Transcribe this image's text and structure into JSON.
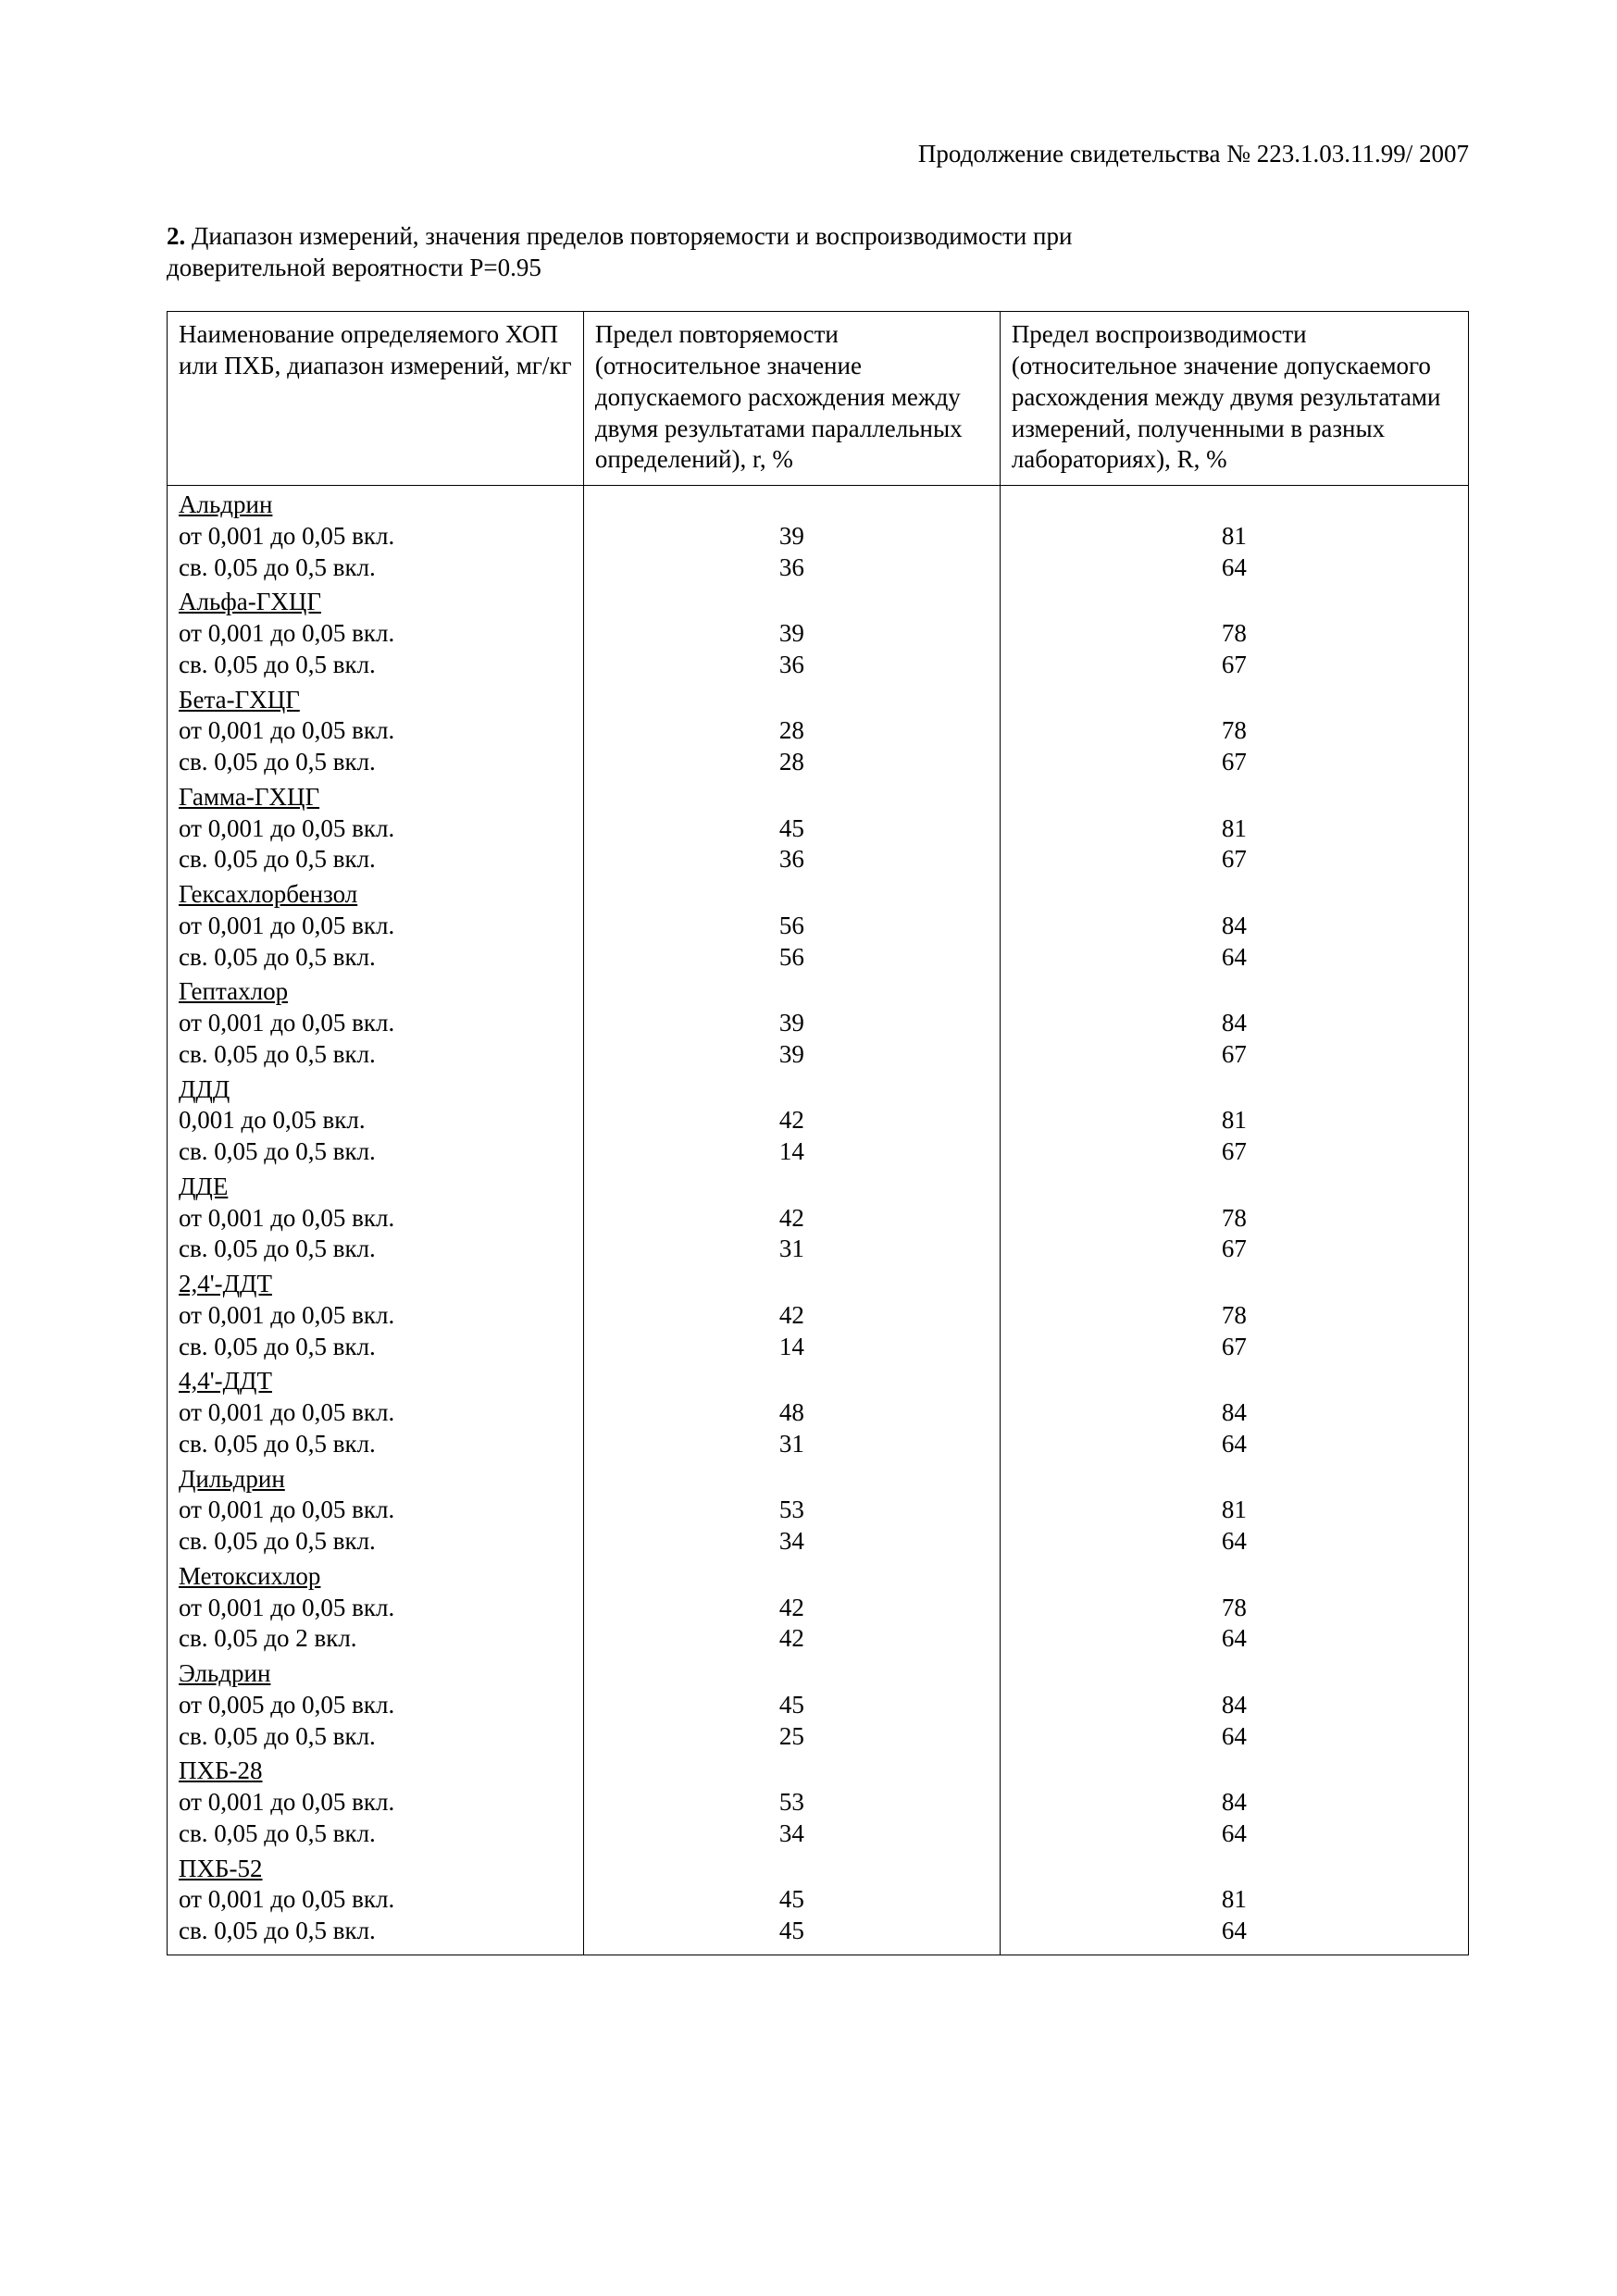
{
  "header": {
    "continuation": "Продолжение свидетельства № 223.1.03.11.99/ 2007"
  },
  "section": {
    "number": "2.",
    "title_part1": "Диапазон измерений, значения пределов повторяемости и воспроизводимости при",
    "title_part2": "доверительной вероятности P=0.95"
  },
  "table": {
    "type": "table",
    "column_widths_percent": [
      32,
      32,
      36
    ],
    "header": {
      "col1": "Наименование определяемого ХОП или ПХБ, диапазон измерений, мг/кг",
      "col2": "Предел повторяемости (относительное значение допускаемого расхождения между двумя результатами параллельных определений), r, %",
      "col3": "Предел воспроизводимости (относительное значение допускаемого расхождения между двумя результатами измерений, полученными в разных лабораториях), R, %"
    },
    "groups": [
      {
        "name": "Альдрин",
        "rows": [
          {
            "range": "от 0,001 до 0,05 вкл.",
            "r": "39",
            "R": "81"
          },
          {
            "range": "св. 0,05 до 0,5 вкл.",
            "r": "36",
            "R": "64"
          }
        ]
      },
      {
        "name": "Альфа-ГХЦГ",
        "rows": [
          {
            "range": "от 0,001 до 0,05 вкл.",
            "r": "39",
            "R": "78"
          },
          {
            "range": "св. 0,05 до 0,5 вкл.",
            "r": "36",
            "R": "67"
          }
        ]
      },
      {
        "name": "Бета-ГХЦГ",
        "rows": [
          {
            "range": "от 0,001 до 0,05 вкл.",
            "r": "28",
            "R": "78"
          },
          {
            "range": "св. 0,05 до 0,5 вкл.",
            "r": "28",
            "R": "67"
          }
        ]
      },
      {
        "name": "Гамма-ГХЦГ",
        "rows": [
          {
            "range": "от 0,001 до 0,05 вкл.",
            "r": "45",
            "R": "81"
          },
          {
            "range": "св. 0,05 до 0,5 вкл.",
            "r": "36",
            "R": "67"
          }
        ]
      },
      {
        "name": "Гексахлорбензол",
        "rows": [
          {
            "range": "от 0,001 до 0,05 вкл.",
            "r": "56",
            "R": "84"
          },
          {
            "range": "св. 0,05 до 0,5 вкл.",
            "r": "56",
            "R": "64"
          }
        ]
      },
      {
        "name": "Гептахлор",
        "rows": [
          {
            "range": "от 0,001 до 0,05 вкл.",
            "r": "39",
            "R": "84"
          },
          {
            "range": "св. 0,05 до 0,5 вкл.",
            "r": "39",
            "R": "67"
          }
        ]
      },
      {
        "name": "ДДД",
        "rows": [
          {
            "range": "0,001 до 0,05 вкл.",
            "r": "42",
            "R": "81"
          },
          {
            "range": "св. 0,05 до 0,5 вкл.",
            "r": "14",
            "R": "67"
          }
        ]
      },
      {
        "name": "ДДЕ",
        "rows": [
          {
            "range": "от 0,001 до 0,05 вкл.",
            "r": "42",
            "R": "78"
          },
          {
            "range": "св. 0,05 до 0,5 вкл.",
            "r": "31",
            "R": "67"
          }
        ]
      },
      {
        "name": "2,4'-ДДТ",
        "rows": [
          {
            "range": "от 0,001 до 0,05 вкл.",
            "r": "42",
            "R": "78"
          },
          {
            "range": "св. 0,05 до 0,5 вкл.",
            "r": "14",
            "R": "67"
          }
        ]
      },
      {
        "name": "4,4'-ДДТ",
        "rows": [
          {
            "range": "от 0,001 до 0,05 вкл.",
            "r": "48",
            "R": "84"
          },
          {
            "range": "св. 0,05 до 0,5 вкл.",
            "r": "31",
            "R": "64"
          }
        ]
      },
      {
        "name": "Дильдрин",
        "rows": [
          {
            "range": "от 0,001 до 0,05 вкл.",
            "r": "53",
            "R": "81"
          },
          {
            "range": "св. 0,05 до 0,5 вкл.",
            "r": "34",
            "R": "64"
          }
        ]
      },
      {
        "name": "Метоксихлор",
        "rows": [
          {
            "range": "от 0,001 до 0,05 вкл.",
            "r": "42",
            "R": "78"
          },
          {
            "range": "св. 0,05 до 2 вкл.",
            "r": "42",
            "R": "64"
          }
        ]
      },
      {
        "name": "Эльдрин",
        "rows": [
          {
            "range": "от 0,005 до 0,05 вкл.",
            "r": "45",
            "R": "84"
          },
          {
            "range": "св. 0,05 до 0,5 вкл.",
            "r": "25",
            "R": "64"
          }
        ]
      },
      {
        "name": "ПХБ-28",
        "rows": [
          {
            "range": "от 0,001 до 0,05 вкл.",
            "r": "53",
            "R": "84"
          },
          {
            "range": "св. 0,05 до 0,5 вкл.",
            "r": "34",
            "R": "64"
          }
        ]
      },
      {
        "name": "ПХБ-52",
        "rows": [
          {
            "range": "от 0,001 до 0,05 вкл.",
            "r": "45",
            "R": "81"
          },
          {
            "range": "св. 0,05 до 0,5 вкл.",
            "r": "45",
            "R": "64"
          }
        ]
      }
    ]
  },
  "colors": {
    "text": "#000000",
    "background": "#ffffff",
    "border": "#000000"
  },
  "typography": {
    "base_fontsize_pt": 12,
    "font_family": "Times New Roman"
  }
}
